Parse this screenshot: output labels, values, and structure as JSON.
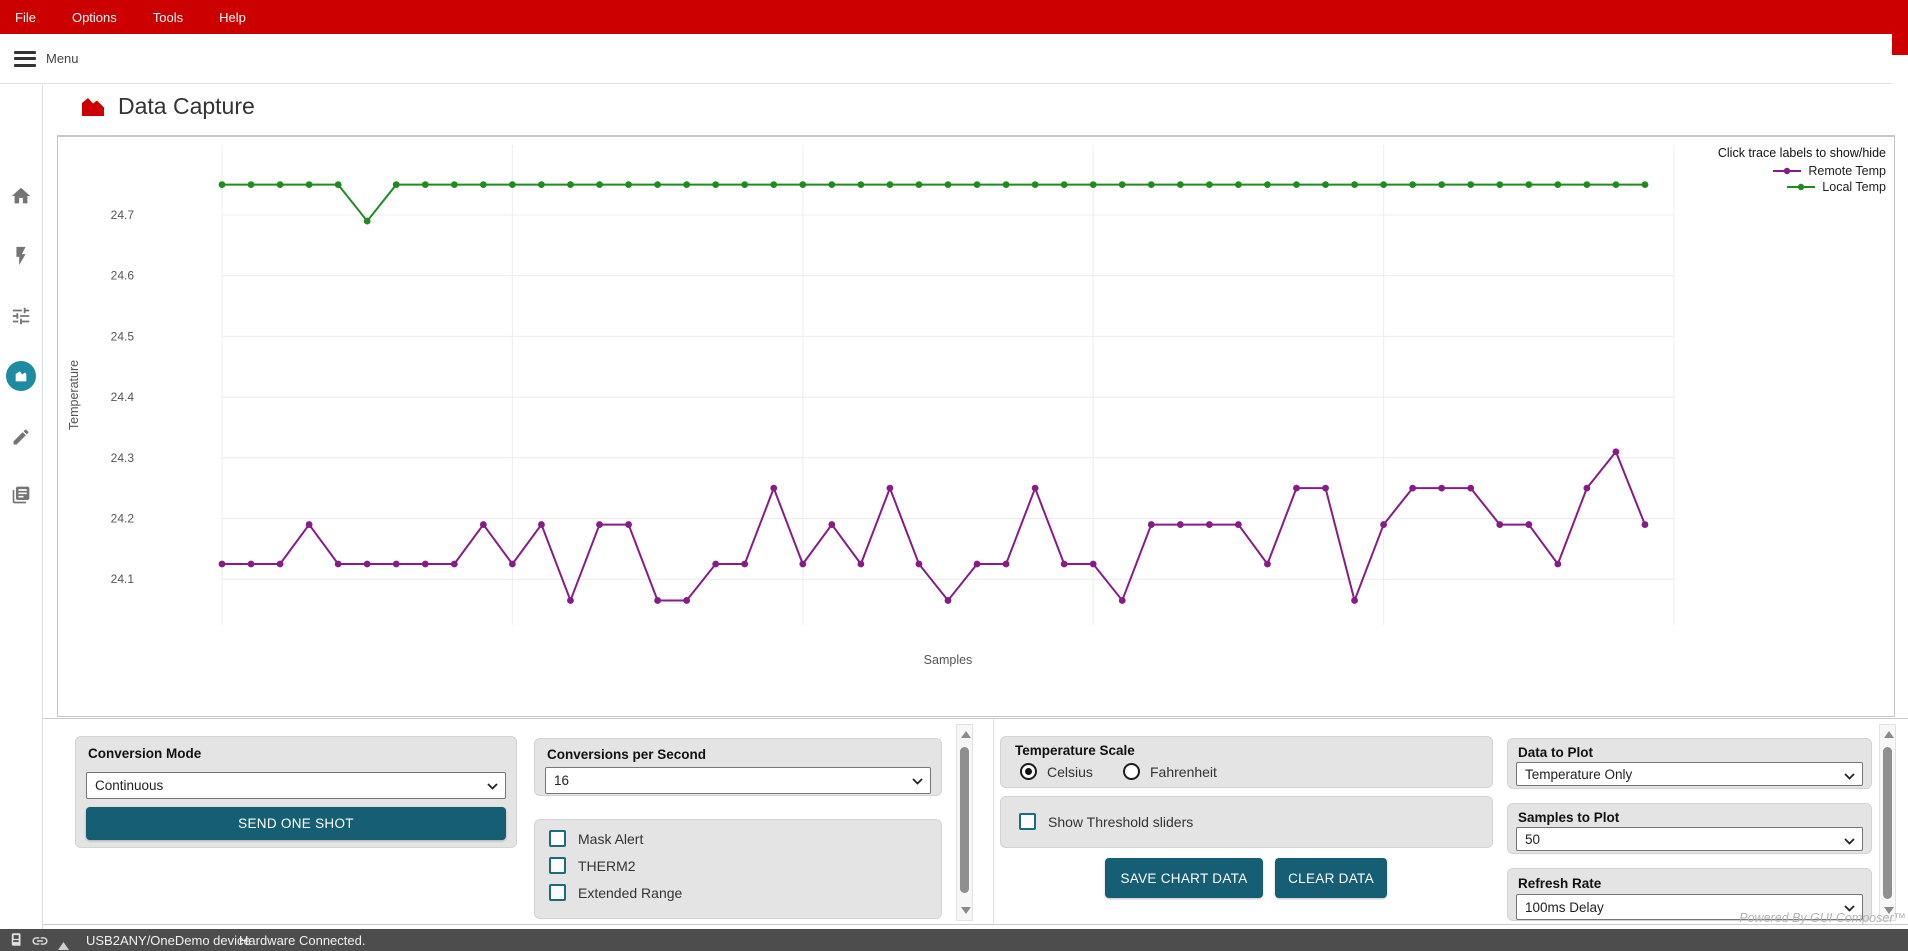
{
  "menubar": {
    "items": [
      "File",
      "Options",
      "Tools",
      "Help"
    ]
  },
  "toolbar": {
    "menu_label": "Menu"
  },
  "sidebar": {
    "items": [
      {
        "icon": "home-icon",
        "active": false
      },
      {
        "icon": "flash-icon",
        "active": false
      },
      {
        "icon": "tune-icon",
        "active": false
      },
      {
        "icon": "area-chart-icon",
        "active": true
      },
      {
        "icon": "edit-icon",
        "active": false
      },
      {
        "icon": "log-icon",
        "active": false
      }
    ]
  },
  "page": {
    "title": "Data Capture"
  },
  "chart_data": {
    "type": "line",
    "title": "",
    "xlabel": "Samples",
    "ylabel": "Temperature",
    "yticks": [
      24.1,
      24.2,
      24.3,
      24.4,
      24.5,
      24.6,
      24.7
    ],
    "ylim": [
      24.02,
      24.78
    ],
    "x_range": [
      0,
      49
    ],
    "samples_to_plot": 50,
    "x_gridline_every": 10,
    "grid": true,
    "legend_position": "top-right",
    "legend_note": "Click trace labels to show/hide",
    "series": [
      {
        "name": "Remote Temp",
        "color": "#871c87",
        "values": [
          24.125,
          24.125,
          24.125,
          24.19,
          24.125,
          24.125,
          24.125,
          24.125,
          24.125,
          24.19,
          24.125,
          24.19,
          24.065,
          24.19,
          24.19,
          24.065,
          24.065,
          24.125,
          24.125,
          24.25,
          24.125,
          24.19,
          24.125,
          24.25,
          24.125,
          24.065,
          24.125,
          24.125,
          24.25,
          24.125,
          24.125,
          24.065,
          24.19,
          24.19,
          24.19,
          24.19,
          24.125,
          24.25,
          24.25,
          24.065,
          24.19,
          24.25,
          24.25,
          24.25,
          24.19,
          24.19,
          24.125,
          24.25,
          24.31,
          24.19
        ]
      },
      {
        "name": "Local Temp",
        "color": "#1e8c1e",
        "values": [
          24.75,
          24.75,
          24.75,
          24.75,
          24.75,
          24.69,
          24.75,
          24.75,
          24.75,
          24.75,
          24.75,
          24.75,
          24.75,
          24.75,
          24.75,
          24.75,
          24.75,
          24.75,
          24.75,
          24.75,
          24.75,
          24.75,
          24.75,
          24.75,
          24.75,
          24.75,
          24.75,
          24.75,
          24.75,
          24.75,
          24.75,
          24.75,
          24.75,
          24.75,
          24.75,
          24.75,
          24.75,
          24.75,
          24.75,
          24.75,
          24.75,
          24.75,
          24.75,
          24.75,
          24.75,
          24.75,
          24.75,
          24.75,
          24.75,
          24.75
        ]
      }
    ]
  },
  "controls": {
    "conversion_mode": {
      "label": "Conversion Mode",
      "value": "Continuous"
    },
    "send_one_shot_label": "SEND ONE SHOT",
    "conversions_per_second": {
      "label": "Conversions per Second",
      "value": "16"
    },
    "checkboxes": [
      {
        "label": "Mask Alert",
        "checked": false
      },
      {
        "label": "THERM2",
        "checked": false
      },
      {
        "label": "Extended Range",
        "checked": false
      }
    ],
    "temperature_scale": {
      "label": "Temperature Scale",
      "options": [
        {
          "label": "Celsius",
          "selected": true
        },
        {
          "label": "Fahrenheit",
          "selected": false
        }
      ]
    },
    "show_threshold": {
      "label": "Show Threshold sliders",
      "checked": false
    },
    "save_chart_label": "SAVE CHART DATA",
    "clear_data_label": "CLEAR DATA",
    "data_to_plot": {
      "label": "Data to Plot",
      "value": "Temperature Only"
    },
    "samples_to_plot": {
      "label": "Samples to Plot",
      "value": "50"
    },
    "refresh_rate": {
      "label": "Refresh Rate",
      "value": "100ms Delay"
    }
  },
  "statusbar": {
    "device": "USB2ANY/OneDemo device",
    "status": "Hardware Connected."
  },
  "watermark": "Powered By GUI Composer™",
  "colors": {
    "ti_red": "#cc0000",
    "accent_teal_button": "#165e73",
    "active_icon_teal": "#1d8ba0",
    "checkbox_border_teal": "#1a6b7d",
    "remote_temp": "#871c87",
    "local_temp": "#1e8c1e",
    "panel_gray": "#e4e4e4",
    "statusbar_gray": "#4d4d4d"
  }
}
